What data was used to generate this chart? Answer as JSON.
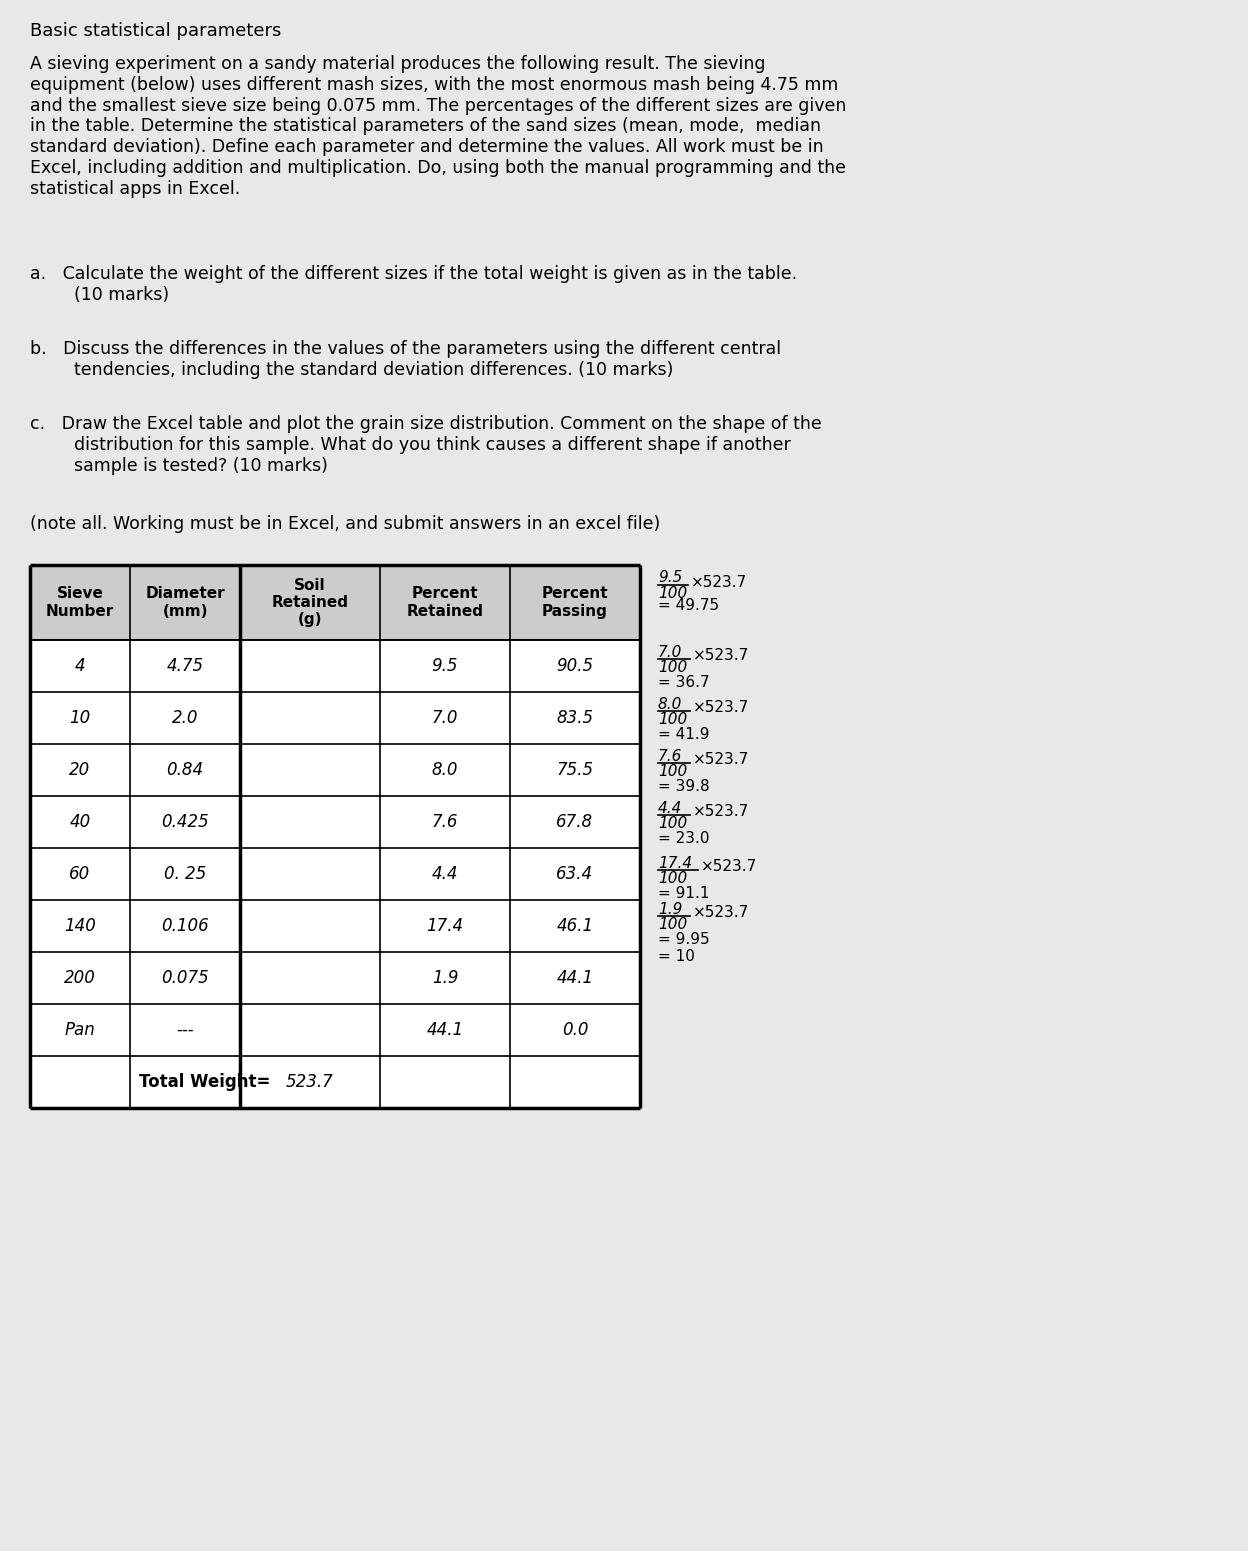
{
  "title": "Basic statistical parameters",
  "paragraph": "A sieving experiment on a sandy material produces the following result. The sieving\nequipment (below) uses different mash sizes, with the most enormous mash being 4.75 mm\nand the smallest sieve size being 0.075 mm. The percentages of the different sizes are given\nin the table. Determine the statistical parameters of the sand sizes (mean, mode,  median\nstandard deviation). Define each parameter and determine the values. All work must be in\nExcel, including addition and multiplication. Do, using both the manual programming and the\nstatistical apps in Excel.",
  "item_a": "a.   Calculate the weight of the different sizes if the total weight is given as in the table.\n        (10 marks)",
  "item_b": "b.   Discuss the differences in the values of the parameters using the different central\n        tendencies, including the standard deviation differences. (10 marks)",
  "item_c": "c.   Draw the Excel table and plot the grain size distribution. Comment on the shape of the\n        distribution for this sample. What do you think causes a different shape if another\n        sample is tested? (10 marks)",
  "note": "(note all. Working must be in Excel, and submit answers in an excel file)",
  "table_headers": [
    "Sieve\nNumber",
    "Diameter\n(mm)",
    "Soil\nRetained\n(g)",
    "Percent\nRetained",
    "Percent\nPassing"
  ],
  "table_rows": [
    [
      "4",
      "4.75",
      "",
      "9.5",
      "90.5"
    ],
    [
      "10",
      "2.0",
      "",
      "7.0",
      "83.5"
    ],
    [
      "20",
      "0.84",
      "",
      "8.0",
      "75.5"
    ],
    [
      "40",
      "0.425",
      "",
      "7.6",
      "67.8"
    ],
    [
      "60",
      "0. 25",
      "",
      "4.4",
      "63.4"
    ],
    [
      "140",
      "0.106",
      "",
      "17.4",
      "46.1"
    ],
    [
      "200",
      "0.075",
      "",
      "1.9",
      "44.1"
    ],
    [
      "Pan",
      "---",
      "",
      "44.1",
      "0.0"
    ]
  ],
  "total_weight": "523.7",
  "annotations": [
    {
      "line1": "9.5",
      "line2": "100",
      "line3": "×523.7",
      "line4": "= 49.75"
    },
    {
      "line1": "7.0",
      "line2": "100",
      "line3": "×523.7",
      "line4": "= 36.7"
    },
    {
      "line1": "8.0",
      "line2": "100",
      "line3": "×523.7",
      "line4": "= 41.9"
    },
    {
      "line1": "7.6",
      "line2": "100",
      "line3": "×523.7",
      "line4": "= 39.8"
    },
    {
      "line1": "4.4",
      "line2": "100",
      "line3": "×523.7",
      "line4": "= 23.0"
    },
    {
      "line1": "17.4",
      "line2": "100",
      "line3": "×523.7",
      "line4": "= 91.1"
    },
    {
      "line1": "1.9",
      "line2": "100",
      "line3": "×523.7",
      "line4": "= 9.95\n= 10"
    }
  ],
  "bg_color": "#e8e8e8",
  "text_color": "#000000",
  "table_header_bg": "#d0d0d0"
}
